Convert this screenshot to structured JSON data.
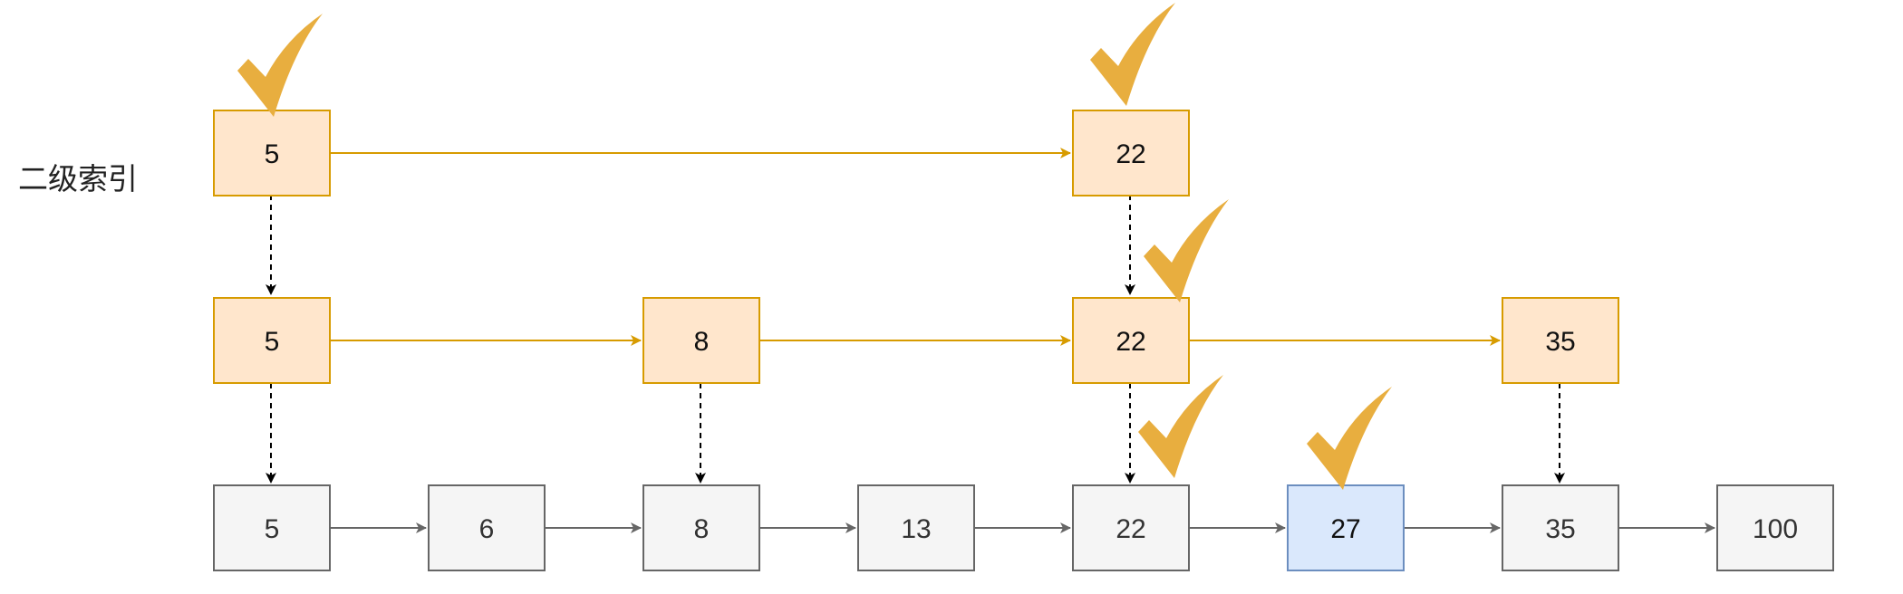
{
  "labels": {
    "level2": "二级索引"
  },
  "level2": [
    "5",
    "22"
  ],
  "level1": [
    "5",
    "8",
    "22",
    "35"
  ],
  "base": [
    "5",
    "6",
    "8",
    "13",
    "22",
    "27",
    "35",
    "100"
  ],
  "colors": {
    "index_fill": "#ffe6cc",
    "index_stroke": "#d79b00",
    "index_arrow": "#d79b00",
    "base_fill": "#f5f5f5",
    "base_stroke": "#666666",
    "base_arrow": "#666666",
    "target_fill": "#dae8fc",
    "target_stroke": "#6c8ebf",
    "check": "#e8ae3f",
    "down_arrow": "#000000"
  }
}
